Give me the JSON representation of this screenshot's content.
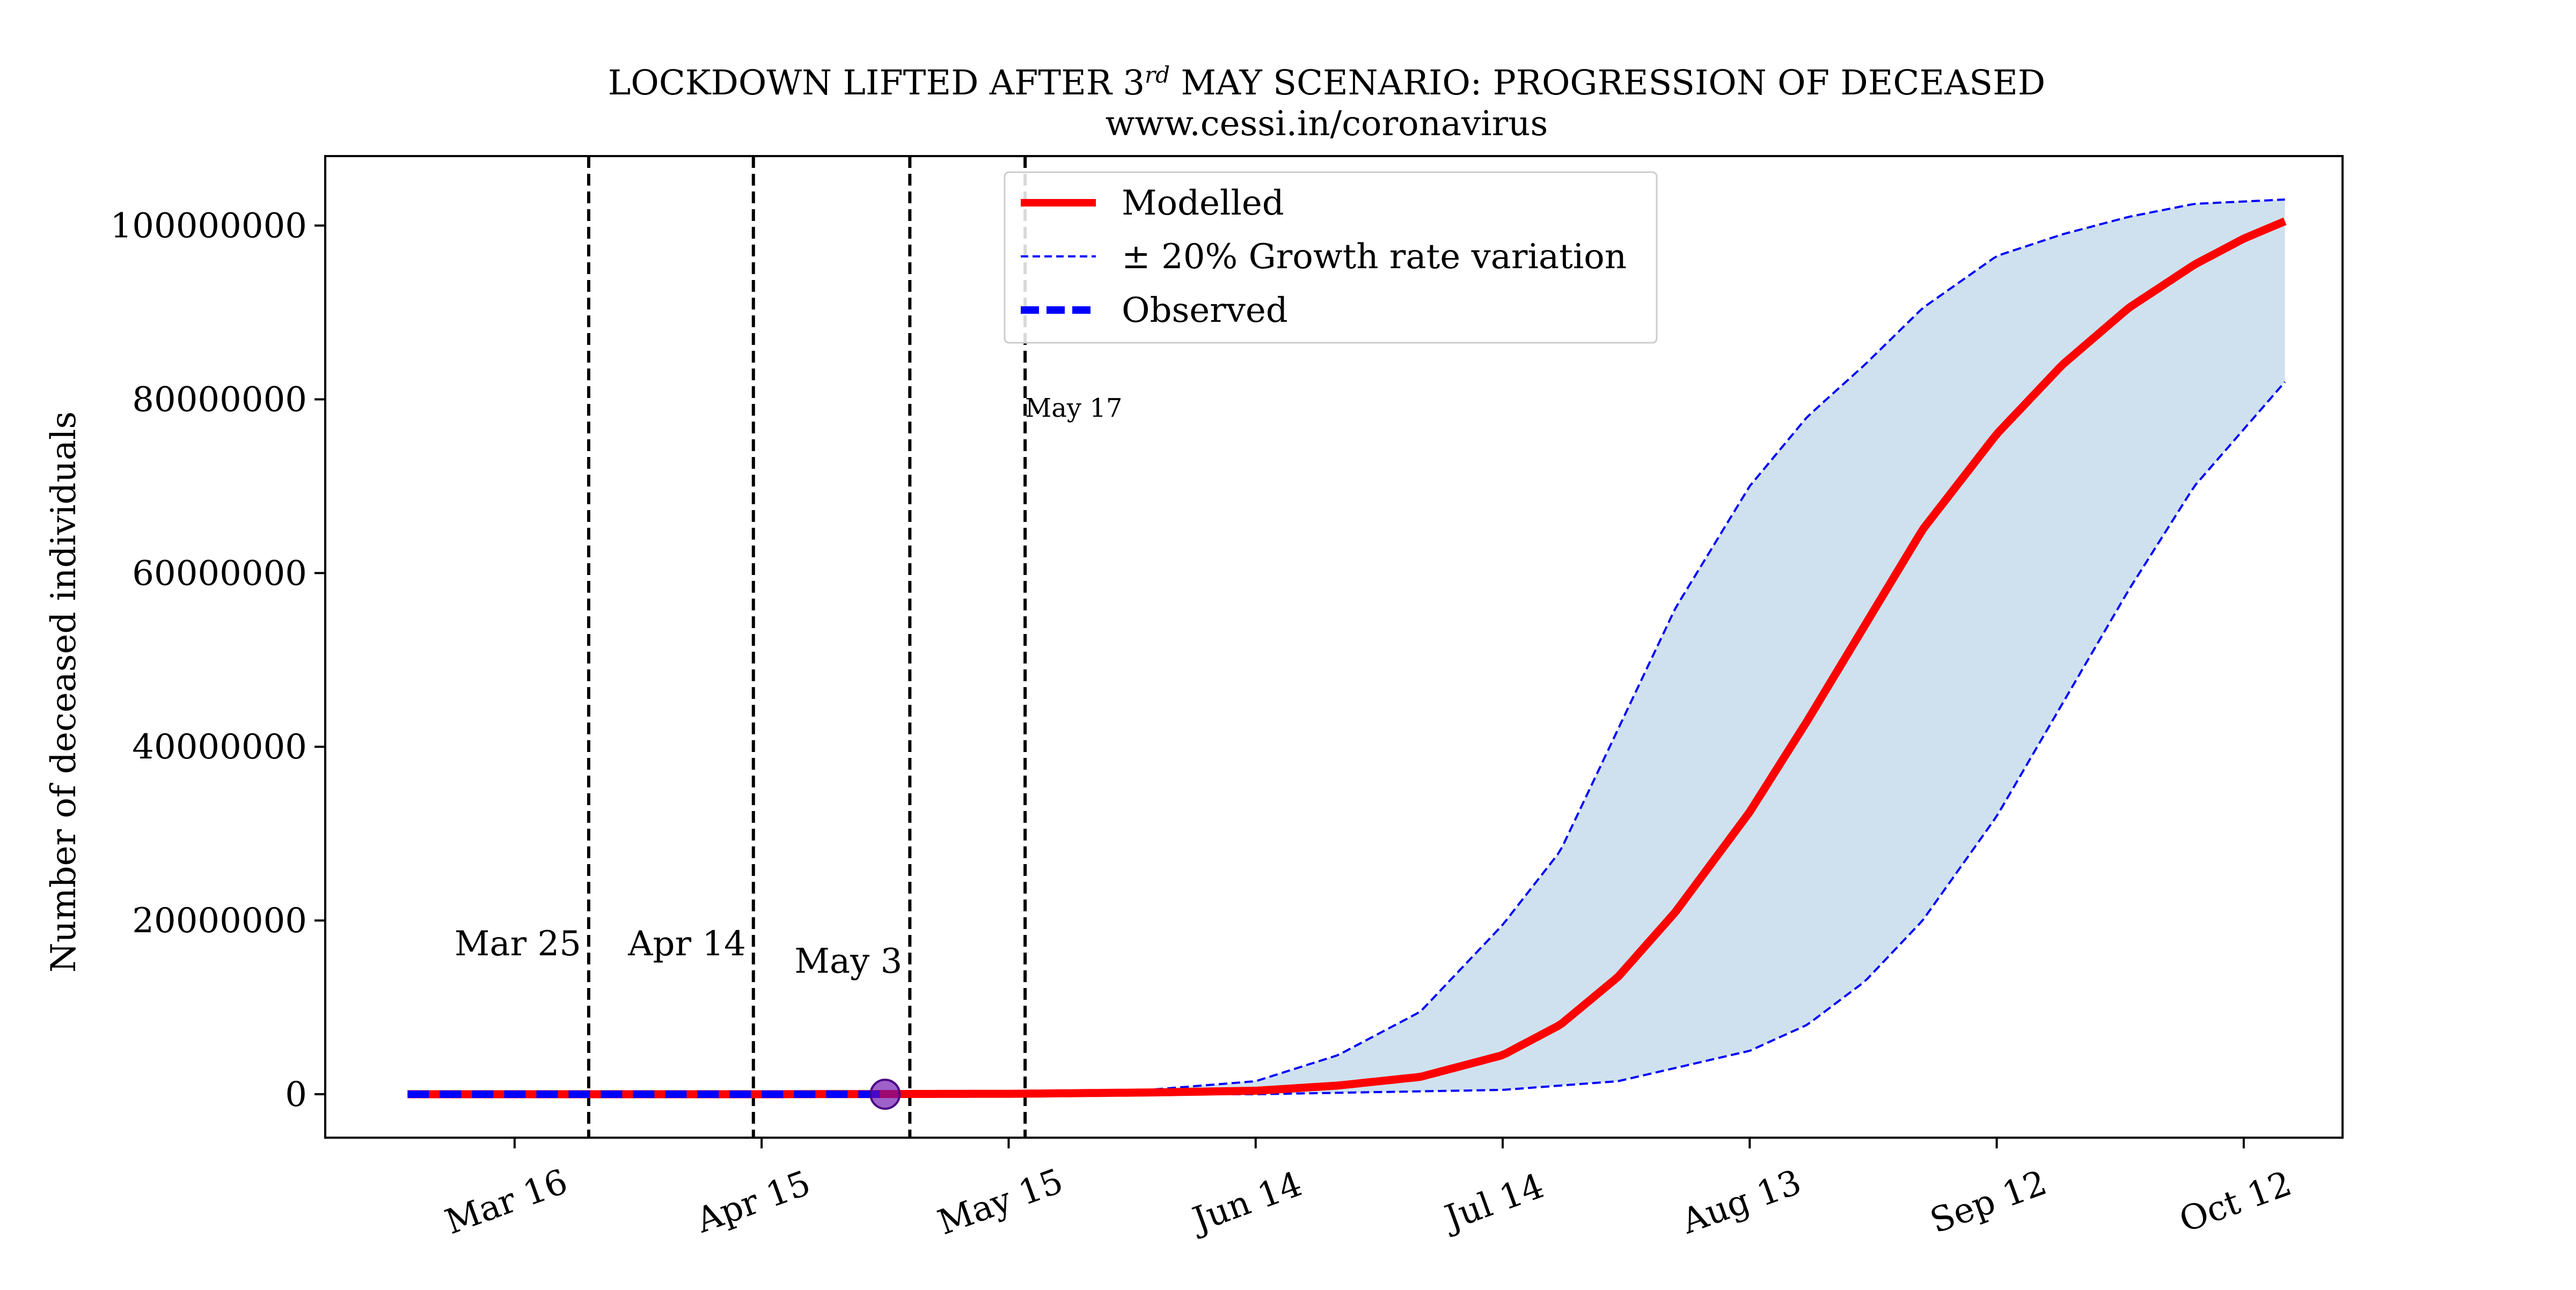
{
  "chart_data": {
    "type": "line",
    "title_parts": {
      "before": "LOCKDOWN LIFTED AFTER 3",
      "superscript": "rd",
      "after": " MAY SCENARIO: PROGRESSION OF DECEASED"
    },
    "subtitle": "www.cessi.in/coronavirus",
    "ylabel": "Number of deceased individuals",
    "xlabel": "",
    "x_axis": {
      "type": "date",
      "range": [
        "2020-02-22",
        "2020-10-24"
      ],
      "ticks": [
        {
          "date": "2020-03-16",
          "label": "Mar 16"
        },
        {
          "date": "2020-04-15",
          "label": "Apr 15"
        },
        {
          "date": "2020-05-15",
          "label": "May 15"
        },
        {
          "date": "2020-06-14",
          "label": "Jun 14"
        },
        {
          "date": "2020-07-14",
          "label": "Jul 14"
        },
        {
          "date": "2020-08-13",
          "label": "Aug 13"
        },
        {
          "date": "2020-09-12",
          "label": "Sep 12"
        },
        {
          "date": "2020-10-12",
          "label": "Oct 12"
        }
      ]
    },
    "y_axis": {
      "range": [
        -5000000,
        108000000
      ],
      "ticks": [
        {
          "value": 0,
          "label": "0"
        },
        {
          "value": 20000000,
          "label": "20000000"
        },
        {
          "value": 40000000,
          "label": "40000000"
        },
        {
          "value": 60000000,
          "label": "60000000"
        },
        {
          "value": 80000000,
          "label": "80000000"
        },
        {
          "value": 100000000,
          "label": "100000000"
        }
      ]
    },
    "grid": false,
    "legend_position": "top-center",
    "legend": [
      {
        "label": "Modelled",
        "style": "solid-thick",
        "color": "#ff0000"
      },
      {
        "label": "± 20% Growth rate variation",
        "style": "dashed-thin",
        "color": "#0000ff"
      },
      {
        "label": "Observed",
        "style": "dashed-thick",
        "color": "#0000ff"
      }
    ],
    "vlines": [
      {
        "date": "2020-03-25",
        "label": "Mar 25",
        "label_size": "large",
        "label_value": 16000000
      },
      {
        "date": "2020-04-14",
        "label": "Apr 14",
        "label_size": "large",
        "label_value": 16000000
      },
      {
        "date": "2020-05-03",
        "label": "May 3",
        "label_size": "large",
        "label_value": 14000000
      },
      {
        "date": "2020-05-17",
        "label": "May 17",
        "label_size": "small",
        "label_value": 78000000
      }
    ],
    "series": [
      {
        "name": "Modelled",
        "color": "#ff0000",
        "x": [
          "2020-03-03",
          "2020-04-15",
          "2020-05-15",
          "2020-06-01",
          "2020-06-14",
          "2020-06-24",
          "2020-07-04",
          "2020-07-14",
          "2020-07-21",
          "2020-07-28",
          "2020-08-04",
          "2020-08-13",
          "2020-08-20",
          "2020-08-27",
          "2020-09-03",
          "2020-09-12",
          "2020-09-20",
          "2020-09-28",
          "2020-10-06",
          "2020-10-12",
          "2020-10-17"
        ],
        "y": [
          0,
          0,
          50000,
          200000,
          400000,
          1000000,
          2000000,
          4500000,
          8000000,
          13500000,
          21000000,
          32500000,
          43000000,
          54000000,
          65000000,
          76000000,
          84000000,
          90500000,
          95500000,
          98500000,
          100500000
        ]
      },
      {
        "name": "+20% growth rate",
        "color": "#0000ff",
        "x": [
          "2020-03-03",
          "2020-05-15",
          "2020-06-01",
          "2020-06-14",
          "2020-06-24",
          "2020-07-04",
          "2020-07-14",
          "2020-07-21",
          "2020-07-28",
          "2020-08-04",
          "2020-08-13",
          "2020-08-20",
          "2020-08-27",
          "2020-09-03",
          "2020-09-12",
          "2020-09-20",
          "2020-09-28",
          "2020-10-06",
          "2020-10-17"
        ],
        "y": [
          0,
          100000,
          500000,
          1500000,
          4500000,
          9500000,
          19500000,
          28000000,
          42000000,
          56000000,
          70000000,
          78000000,
          84000000,
          90500000,
          96500000,
          99000000,
          101000000,
          102500000,
          103000000
        ]
      },
      {
        "name": "-20% growth rate",
        "color": "#0000ff",
        "x": [
          "2020-03-03",
          "2020-06-14",
          "2020-07-14",
          "2020-07-28",
          "2020-08-13",
          "2020-08-20",
          "2020-08-27",
          "2020-09-03",
          "2020-09-12",
          "2020-09-20",
          "2020-09-28",
          "2020-10-06",
          "2020-10-17"
        ],
        "y": [
          0,
          0,
          500000,
          1500000,
          5000000,
          8000000,
          13000000,
          20000000,
          32000000,
          45000000,
          58000000,
          70000000,
          82000000
        ]
      },
      {
        "name": "Observed",
        "color": "#0000ff",
        "x": [
          "2020-03-03",
          "2020-04-30"
        ],
        "y": [
          0,
          0
        ]
      }
    ],
    "marker": {
      "date": "2020-04-30",
      "value": 0,
      "color": "#6a0dad"
    },
    "band_color": "#cfe1ee"
  }
}
